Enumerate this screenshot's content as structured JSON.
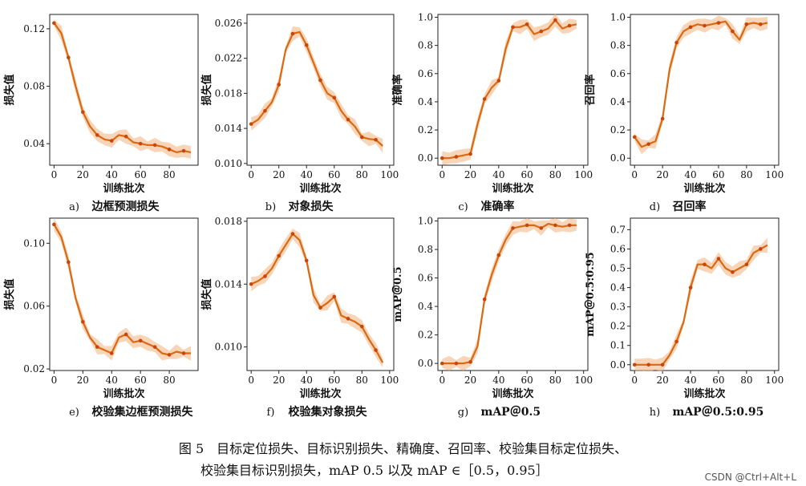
{
  "colors": {
    "line": "#d96a12",
    "band": "#f2b27d",
    "marker": "#c8460a",
    "axis": "#222222"
  },
  "caption": {
    "line1": "图 5　目标定位损失、目标识别损失、精确度、召回率、校验集目标定位损失、",
    "line2": "校验集目标识别损失，mAP 0.5 以及 mAP ∈［0.5，0.95］"
  },
  "watermark": "CSDN @Ctrl+Alt+L",
  "chart_data": [
    {
      "id": "a",
      "type": "line",
      "panel_label": "a)",
      "subtitle": "边框预测损失",
      "xlabel": "训练批次",
      "ylabel": "损失值",
      "xlim": [
        -3,
        100
      ],
      "ylim": [
        0.025,
        0.13
      ],
      "xticks": [
        0,
        20,
        40,
        60,
        80
      ],
      "xticklabels": [
        "0",
        "20",
        "40",
        "60",
        "80"
      ],
      "yticks": [
        0.04,
        0.08,
        0.12
      ],
      "yticklabels": [
        "0.04",
        "0.08",
        "0.12"
      ],
      "x": [
        0,
        5,
        10,
        15,
        20,
        25,
        30,
        35,
        40,
        45,
        50,
        55,
        60,
        65,
        70,
        75,
        80,
        85,
        90,
        95
      ],
      "y": [
        0.124,
        0.117,
        0.1,
        0.08,
        0.062,
        0.052,
        0.046,
        0.043,
        0.042,
        0.046,
        0.045,
        0.041,
        0.04,
        0.039,
        0.039,
        0.038,
        0.036,
        0.034,
        0.035,
        0.034
      ]
    },
    {
      "id": "b",
      "type": "line",
      "panel_label": "b)",
      "subtitle": "对象损失",
      "xlabel": "训练批次",
      "ylabel": "损失值",
      "xlim": [
        -3,
        103
      ],
      "ylim": [
        0.0098,
        0.027
      ],
      "xticks": [
        0,
        20,
        40,
        60,
        80,
        100
      ],
      "xticklabels": [
        "0",
        "20",
        "40",
        "60",
        "80",
        "100"
      ],
      "yticks": [
        0.01,
        0.014,
        0.018,
        0.022,
        0.026
      ],
      "yticklabels": [
        "0.010",
        "0.014",
        "0.018",
        "0.022",
        "0.026"
      ],
      "x": [
        0,
        5,
        10,
        15,
        20,
        25,
        30,
        35,
        40,
        45,
        50,
        55,
        60,
        65,
        70,
        75,
        80,
        85,
        90,
        95
      ],
      "y": [
        0.0145,
        0.015,
        0.016,
        0.017,
        0.019,
        0.023,
        0.0248,
        0.025,
        0.0235,
        0.0215,
        0.0195,
        0.018,
        0.0175,
        0.016,
        0.015,
        0.0142,
        0.013,
        0.0128,
        0.0127,
        0.012
      ]
    },
    {
      "id": "c",
      "type": "line",
      "panel_label": "c)",
      "subtitle": "准确率",
      "xlabel": "训练批次",
      "ylabel": "准确率",
      "xlim": [
        -3,
        103
      ],
      "ylim": [
        -0.05,
        1.02
      ],
      "xticks": [
        0,
        20,
        40,
        60,
        80,
        100
      ],
      "xticklabels": [
        "0",
        "20",
        "40",
        "60",
        "80",
        "100"
      ],
      "yticks": [
        0.0,
        0.2,
        0.4,
        0.6,
        0.8,
        1.0
      ],
      "yticklabels": [
        "0.0",
        "0.2",
        "0.4",
        "0.6",
        "0.8",
        "1.0"
      ],
      "x": [
        0,
        5,
        10,
        15,
        20,
        25,
        30,
        35,
        40,
        45,
        50,
        55,
        60,
        65,
        70,
        75,
        80,
        85,
        90,
        95
      ],
      "y": [
        0.0,
        0.0,
        0.01,
        0.02,
        0.03,
        0.24,
        0.42,
        0.5,
        0.55,
        0.78,
        0.93,
        0.93,
        0.95,
        0.88,
        0.9,
        0.92,
        0.98,
        0.92,
        0.94,
        0.95
      ]
    },
    {
      "id": "d",
      "type": "line",
      "panel_label": "d)",
      "subtitle": "召回率",
      "xlabel": "训练批次",
      "ylabel": "召回率",
      "xlim": [
        -3,
        103
      ],
      "ylim": [
        -0.05,
        1.02
      ],
      "xticks": [
        0,
        20,
        40,
        60,
        80,
        100
      ],
      "xticklabels": [
        "0",
        "20",
        "40",
        "60",
        "80",
        "100"
      ],
      "yticks": [
        0.0,
        0.2,
        0.4,
        0.6,
        0.8,
        1.0
      ],
      "yticklabels": [
        "0.0",
        "0.2",
        "0.4",
        "0.6",
        "0.8",
        "1.0"
      ],
      "x": [
        0,
        5,
        10,
        15,
        20,
        25,
        30,
        35,
        40,
        45,
        50,
        55,
        60,
        65,
        70,
        75,
        80,
        85,
        90,
        95
      ],
      "y": [
        0.15,
        0.08,
        0.1,
        0.12,
        0.28,
        0.63,
        0.82,
        0.9,
        0.93,
        0.95,
        0.94,
        0.95,
        0.96,
        0.97,
        0.9,
        0.84,
        0.95,
        0.96,
        0.95,
        0.96
      ]
    },
    {
      "id": "e",
      "type": "line",
      "panel_label": "e)",
      "subtitle": "校验集边框预测损失",
      "xlabel": "训练批次",
      "ylabel": "损失值",
      "xlim": [
        -3,
        100
      ],
      "ylim": [
        0.019,
        0.116
      ],
      "xticks": [
        0,
        20,
        40,
        60,
        80
      ],
      "xticklabels": [
        "0",
        "20",
        "40",
        "60",
        "80"
      ],
      "yticks": [
        0.02,
        0.06,
        0.1
      ],
      "yticklabels": [
        "0.02",
        "0.06",
        "0.10"
      ],
      "x": [
        0,
        5,
        10,
        15,
        20,
        25,
        30,
        35,
        40,
        45,
        50,
        55,
        60,
        65,
        70,
        75,
        80,
        85,
        90,
        95
      ],
      "y": [
        0.112,
        0.104,
        0.088,
        0.065,
        0.05,
        0.04,
        0.034,
        0.032,
        0.03,
        0.04,
        0.042,
        0.037,
        0.038,
        0.036,
        0.034,
        0.03,
        0.029,
        0.031,
        0.03,
        0.03
      ]
    },
    {
      "id": "f",
      "type": "line",
      "panel_label": "f)",
      "subtitle": "校验集对象损失",
      "xlabel": "训练批次",
      "ylabel": "损失值",
      "xlim": [
        -3,
        103
      ],
      "ylim": [
        0.0085,
        0.0182
      ],
      "xticks": [
        0,
        20,
        40,
        60,
        80,
        100
      ],
      "xticklabels": [
        "0",
        "20",
        "40",
        "60",
        "80",
        "100"
      ],
      "yticks": [
        0.01,
        0.014,
        0.018
      ],
      "yticklabels": [
        "0.010",
        "0.014",
        "0.018"
      ],
      "x": [
        0,
        5,
        10,
        15,
        20,
        25,
        30,
        35,
        40,
        45,
        50,
        55,
        60,
        65,
        70,
        75,
        80,
        85,
        90,
        95
      ],
      "y": [
        0.014,
        0.0142,
        0.0145,
        0.015,
        0.0158,
        0.0165,
        0.0172,
        0.0168,
        0.0155,
        0.0133,
        0.0125,
        0.0128,
        0.0132,
        0.012,
        0.0118,
        0.0116,
        0.0113,
        0.0105,
        0.0098,
        0.009
      ]
    },
    {
      "id": "g",
      "type": "line",
      "panel_label": "g)",
      "subtitle": "mAP＠0.5",
      "xlabel": "训练批次",
      "ylabel": "mAP＠0.5",
      "xlim": [
        -3,
        103
      ],
      "ylim": [
        -0.05,
        1.02
      ],
      "xticks": [
        0,
        20,
        40,
        60,
        80,
        100
      ],
      "xticklabels": [
        "0",
        "20",
        "40",
        "60",
        "80",
        "100"
      ],
      "yticks": [
        0.0,
        0.2,
        0.4,
        0.6,
        0.8,
        1.0
      ],
      "yticklabels": [
        "0.0",
        "0.2",
        "0.4",
        "0.6",
        "0.8",
        "1.0"
      ],
      "x": [
        0,
        5,
        10,
        15,
        20,
        25,
        30,
        35,
        40,
        45,
        50,
        55,
        60,
        65,
        70,
        75,
        80,
        85,
        90,
        95
      ],
      "y": [
        0.0,
        0.0,
        0.0,
        0.0,
        0.01,
        0.12,
        0.45,
        0.62,
        0.76,
        0.87,
        0.95,
        0.96,
        0.97,
        0.97,
        0.95,
        0.98,
        0.97,
        0.96,
        0.97,
        0.97
      ]
    },
    {
      "id": "h",
      "type": "line",
      "panel_label": "h)",
      "subtitle": "mAP＠0.5:0.95",
      "xlabel": "训练批次",
      "ylabel": "mAP＠0.5:0.95",
      "xlim": [
        -3,
        103
      ],
      "ylim": [
        -0.03,
        0.76
      ],
      "xticks": [
        0,
        20,
        40,
        60,
        80,
        100
      ],
      "xticklabels": [
        "0",
        "20",
        "40",
        "60",
        "80",
        "100"
      ],
      "yticks": [
        0.0,
        0.1,
        0.2,
        0.3,
        0.4,
        0.5,
        0.6,
        0.7
      ],
      "yticklabels": [
        "0.0",
        "0.1",
        "0.2",
        "0.3",
        "0.4",
        "0.5",
        "0.6",
        "0.7"
      ],
      "x": [
        0,
        5,
        10,
        15,
        20,
        25,
        30,
        35,
        40,
        45,
        50,
        55,
        60,
        65,
        70,
        75,
        80,
        85,
        90,
        95
      ],
      "y": [
        0.0,
        0.0,
        0.0,
        0.0,
        0.0,
        0.05,
        0.12,
        0.22,
        0.4,
        0.52,
        0.52,
        0.5,
        0.55,
        0.5,
        0.48,
        0.5,
        0.52,
        0.58,
        0.6,
        0.62
      ]
    }
  ]
}
